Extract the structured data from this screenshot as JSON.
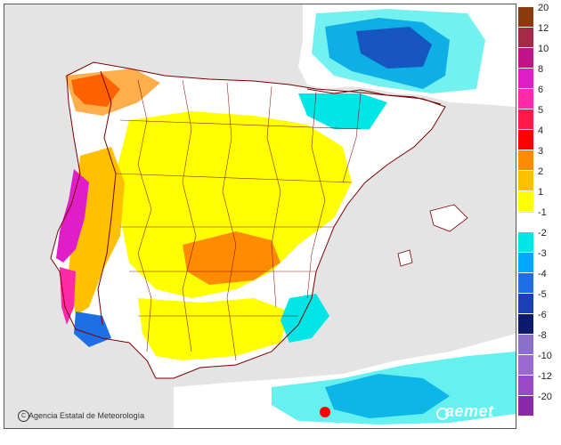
{
  "map": {
    "credit": "Agencia Estatal de Meteorología",
    "credit_symbol": "C",
    "brand": "aemet",
    "colors": {
      "sea": "#e4e4e4",
      "land_neutral": "#ffffff",
      "border": "#7a0000"
    }
  },
  "legend": {
    "items": [
      {
        "label": "20",
        "color": "#8b3a0e"
      },
      {
        "label": "12",
        "color": "#a52a4a"
      },
      {
        "label": "10",
        "color": "#c0158a"
      },
      {
        "label": "8",
        "color": "#e01ec8"
      },
      {
        "label": "6",
        "color": "#ff2aa8"
      },
      {
        "label": "5",
        "color": "#ff1a4a"
      },
      {
        "label": "4",
        "color": "#ff0000"
      },
      {
        "label": "3",
        "color": "#ff8c00"
      },
      {
        "label": "2",
        "color": "#ffc000"
      },
      {
        "label": "1",
        "color": "#ffff00"
      },
      {
        "label": "-1",
        "color": "#ffffff"
      },
      {
        "label": "-2",
        "color": "#00e6e6"
      },
      {
        "label": "-3",
        "color": "#00a8ff"
      },
      {
        "label": "-4",
        "color": "#1e6ee6"
      },
      {
        "label": "-5",
        "color": "#1a40b4"
      },
      {
        "label": "-6",
        "color": "#0a1a6e"
      },
      {
        "label": "-8",
        "color": "#8a70c8"
      },
      {
        "label": "-10",
        "color": "#9a6ad0"
      },
      {
        "label": "-12",
        "color": "#9a4ac8"
      },
      {
        "label": "-20",
        "color": "#8a2aaa"
      }
    ]
  }
}
